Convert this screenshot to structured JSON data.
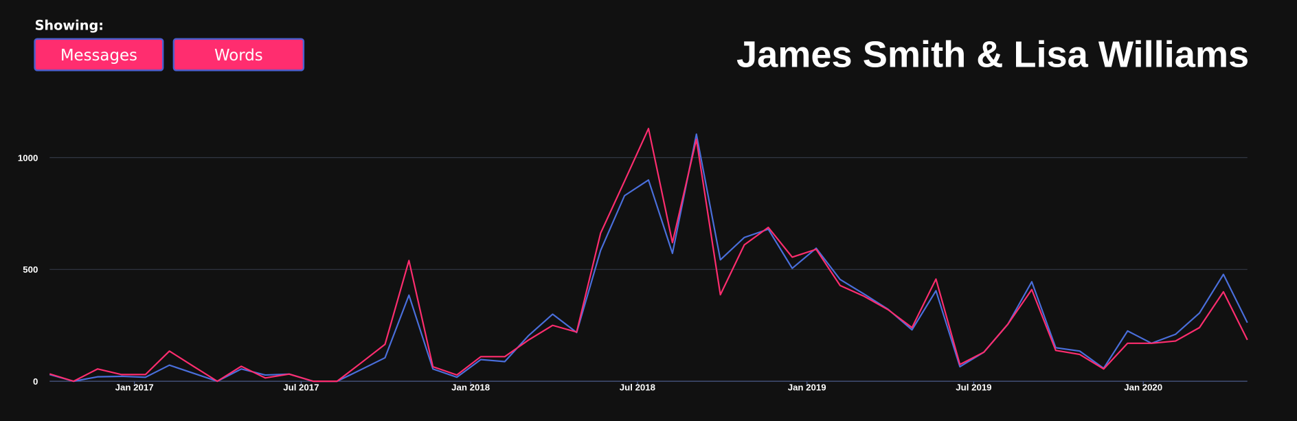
{
  "header": {
    "label": "Showing:",
    "buttons": [
      "Messages",
      "Words"
    ]
  },
  "chart_data": {
    "type": "line",
    "title": "James Smith & Lisa Williams",
    "x": [
      "2016-10-01",
      "2016-10-27",
      "2016-11-22",
      "2016-12-18",
      "2017-01-13",
      "2017-02-08",
      "2017-03-06",
      "2017-04-01",
      "2017-04-27",
      "2017-05-23",
      "2017-06-18",
      "2017-07-14",
      "2017-08-09",
      "2017-09-04",
      "2017-09-30",
      "2017-10-26",
      "2017-11-21",
      "2017-12-17",
      "2018-01-12",
      "2018-02-07",
      "2018-03-05",
      "2018-03-31",
      "2018-04-26",
      "2018-05-22",
      "2018-06-17",
      "2018-07-13",
      "2018-08-08",
      "2018-09-03",
      "2018-09-29",
      "2018-10-25",
      "2018-11-20",
      "2018-12-16",
      "2019-01-11",
      "2019-02-06",
      "2019-03-04",
      "2019-03-30",
      "2019-04-25",
      "2019-05-21",
      "2019-06-16",
      "2019-07-12",
      "2019-08-07",
      "2019-09-02",
      "2019-09-28",
      "2019-10-24",
      "2019-11-19",
      "2019-12-15",
      "2020-01-10",
      "2020-02-05",
      "2020-03-02",
      "2020-03-28",
      "2020-04-23"
    ],
    "series": [
      {
        "color": "#4a6fdc",
        "values": [
          30,
          0,
          20,
          22,
          18,
          72,
          36,
          0,
          55,
          28,
          32,
          0,
          0,
          52,
          105,
          385,
          55,
          18,
          97,
          88,
          205,
          300,
          218,
          585,
          830,
          900,
          572,
          1105,
          543,
          643,
          680,
          505,
          595,
          455,
          390,
          322,
          230,
          405,
          65,
          130,
          255,
          445,
          150,
          135,
          58,
          225,
          170,
          210,
          305,
          478,
          262
        ]
      },
      {
        "color": "#ff2d6f",
        "values": [
          33,
          0,
          55,
          30,
          30,
          135,
          67,
          0,
          67,
          15,
          32,
          0,
          0,
          82,
          165,
          540,
          65,
          28,
          110,
          110,
          185,
          250,
          220,
          662,
          895,
          1130,
          620,
          1082,
          387,
          610,
          688,
          555,
          590,
          428,
          380,
          320,
          240,
          457,
          75,
          130,
          255,
          410,
          138,
          120,
          55,
          170,
          170,
          180,
          240,
          400,
          185
        ]
      }
    ],
    "xlim": [
      "2016-10-01",
      "2020-04-23"
    ],
    "xticks": [
      {
        "value": "2017-01-01",
        "label": "Jan 2017"
      },
      {
        "value": "2017-07-01",
        "label": "Jul 2017"
      },
      {
        "value": "2018-01-01",
        "label": "Jan 2018"
      },
      {
        "value": "2018-07-01",
        "label": "Jul 2018"
      },
      {
        "value": "2019-01-01",
        "label": "Jan 2019"
      },
      {
        "value": "2019-07-01",
        "label": "Jul 2019"
      },
      {
        "value": "2020-01-01",
        "label": "Jan 2020"
      }
    ],
    "ylim": [
      0,
      1150
    ],
    "yticks": [
      0,
      500,
      1000
    ],
    "grid": true
  }
}
